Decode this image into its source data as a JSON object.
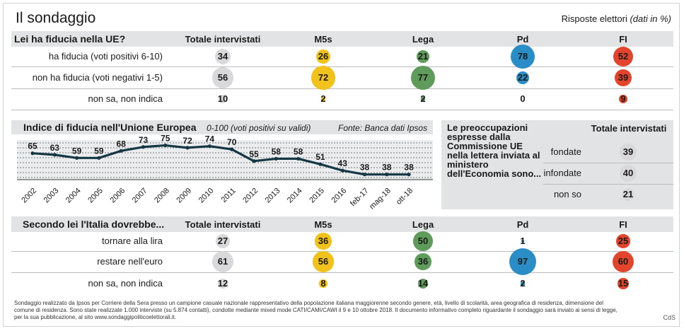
{
  "header": {
    "title": "Il sondaggio",
    "subtitle": "Risposte elettori",
    "subtitle_note": "(dati in %)"
  },
  "colors": {
    "totale": "#d9d9db",
    "m5s": "#f0c21b",
    "lega": "#5f9b5a",
    "pd": "#2a8dc5",
    "fi": "#e2452b",
    "line": "#153745",
    "band": "#e1e3e5"
  },
  "columns": [
    "Totale intervistati",
    "M5s",
    "Lega",
    "Pd",
    "FI"
  ],
  "section1": {
    "title": "Lei ha fiducia nella UE?",
    "rows": [
      {
        "label": "ha fiducia (voti positivi 6-10)",
        "values": [
          34,
          26,
          21,
          78,
          52
        ]
      },
      {
        "label": "non ha fiducia (voti negativi 1-5)",
        "values": [
          56,
          72,
          77,
          22,
          39
        ]
      },
      {
        "label": "non sa, non indica",
        "values": [
          10,
          2,
          2,
          0,
          9
        ]
      }
    ]
  },
  "section3": {
    "title": "Secondo lei l'Italia dovrebbe...",
    "rows": [
      {
        "label": "tornare alla lira",
        "values": [
          27,
          36,
          50,
          1,
          25
        ]
      },
      {
        "label": "restare nell'euro",
        "values": [
          61,
          56,
          36,
          97,
          60
        ]
      },
      {
        "label": "non sa, non indica",
        "values": [
          12,
          8,
          14,
          2,
          15
        ]
      }
    ]
  },
  "chart_data": {
    "type": "line",
    "title": "Indice di fiducia nell'Unione Europea",
    "subtitle": "0-100 (voti positivi su validi)",
    "source": "Fonte: Banca dati Ipsos",
    "categories": [
      "2002",
      "2003",
      "2004",
      "2005",
      "2006",
      "2007",
      "2008",
      "2009",
      "2010",
      "2011",
      "2012",
      "2013",
      "2014",
      "2015",
      "2016",
      "feb-17",
      "mag-18",
      "ott-18"
    ],
    "values": [
      65,
      63,
      59,
      59,
      68,
      73,
      75,
      72,
      74,
      70,
      55,
      58,
      58,
      51,
      43,
      38,
      38,
      38
    ],
    "ylim": [
      0,
      100
    ]
  },
  "preoccupazioni": {
    "title": "Le preoccupazioni espresse dalla Commissione UE nella lettera inviata al ministero dell'Economia sono...",
    "column": "Totale intervistati",
    "rows": [
      {
        "label": "fondate",
        "value": 39
      },
      {
        "label": "infondate",
        "value": 40
      },
      {
        "label": "non so",
        "value": 21
      }
    ]
  },
  "footer": {
    "note": "Sondaggio realizzato da Ipsos per Corriere della Sera presso un campione casuale nazionale rappresentativo della popolazione italiana maggiorenne secondo genere, età, livello di scolarità, area geografica di residenza, dimensione del comune di residenza. Sono state realizzate 1.000 interviste (su 5.874 contatti), condotte mediante mixed mode CATI/CAMI/CAWI il 9 e 10 ottobre 2018. Il documento informativo completo riguardante il sondaggio sarà inviato ai sensi di legge, per la sua pubblicazione, al sito www.sondaggipoliticoelettorali.it.",
    "credit": "CdS"
  }
}
